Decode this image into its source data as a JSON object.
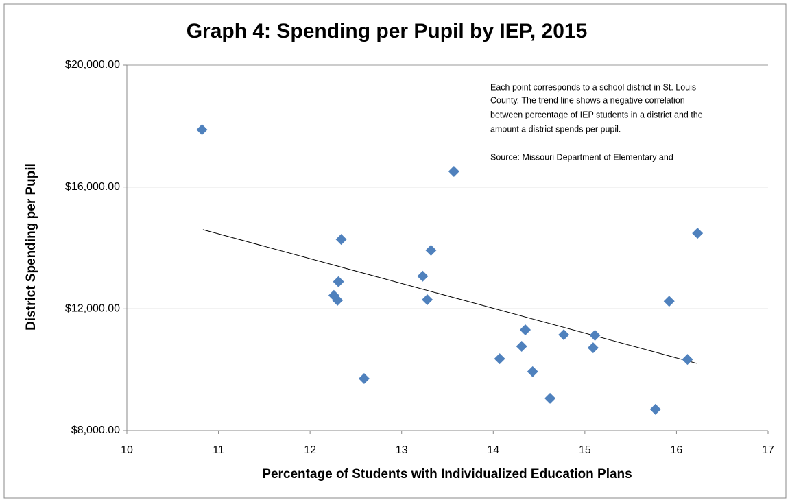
{
  "chart_data": {
    "type": "scatter",
    "title": "Graph 4: Spending per Pupil by IEP, 2015",
    "x_label": "Percentage of Students with Individualized Education Plans",
    "y_label": "District Spending per Pupil",
    "annotation": [
      "Each point corresponds to a school district in St. Louis",
      "County.  The trend line shows a negative correlation",
      "between  percentage of IEP students in a district and the",
      "amount a district spends per pupil.",
      "Source: Missouri Department of Elementary and"
    ],
    "color": "#4f81bd",
    "grid": true,
    "x": [
      10.82,
      13.57,
      12.34,
      16.23,
      13.32,
      13.23,
      12.31,
      12.26,
      12.3,
      13.28,
      12.59,
      15.92,
      14.35,
      14.77,
      15.11,
      14.07,
      14.31,
      15.09,
      16.12,
      14.43,
      14.62,
      15.77
    ],
    "values": [
      17880,
      16510,
      14280,
      14480,
      13920,
      13070,
      12890,
      12440,
      12280,
      12300,
      9710,
      12250,
      11310,
      11150,
      11130,
      10360,
      10770,
      10720,
      10340,
      9940,
      9060,
      8700
    ],
    "trendline": {
      "x": [
        10.83,
        16.22
      ],
      "values": [
        14600,
        10210
      ],
      "color": "#000000"
    },
    "xlim": [
      10,
      17
    ],
    "xticks": [
      10,
      11,
      12,
      13,
      14,
      15,
      16,
      17
    ],
    "ylim": [
      8000,
      20000
    ],
    "yticks": [
      {
        "value": 8000,
        "label": "$8,000.00"
      },
      {
        "value": 12000,
        "label": "$12,000.00"
      },
      {
        "value": 16000,
        "label": "$16,000.00"
      },
      {
        "value": 20000,
        "label": "$20,000.00"
      }
    ]
  }
}
